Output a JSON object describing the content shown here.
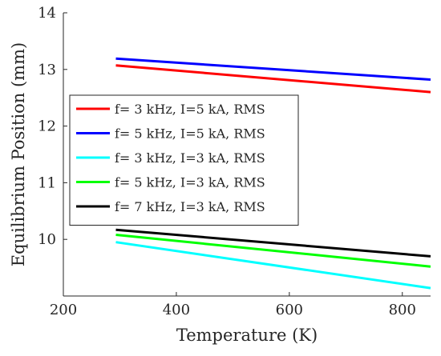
{
  "chart_data": {
    "type": "line",
    "title": "",
    "xlabel": "Temperature (K)",
    "ylabel": "Equilibrium Position (mm)",
    "xlim": [
      200,
      850
    ],
    "ylim": [
      9,
      14
    ],
    "xticks": [
      200,
      400,
      600,
      800
    ],
    "yticks": [
      10,
      11,
      12,
      13,
      14
    ],
    "grid": false,
    "legend_position": "center-left",
    "series": [
      {
        "name": "f= 3 kHz, I=5 kA, RMS",
        "color": "#ff0000",
        "x": [
          293,
          850
        ],
        "y": [
          13.07,
          12.6
        ]
      },
      {
        "name": "f= 5 kHz, I=5 kA, RMS",
        "color": "#0000ff",
        "x": [
          293,
          850
        ],
        "y": [
          13.19,
          12.82
        ]
      },
      {
        "name": "f= 3 kHz, I=3 kA, RMS",
        "color": "#00ffff",
        "x": [
          293,
          850
        ],
        "y": [
          9.95,
          9.14
        ]
      },
      {
        "name": "f= 5 kHz, I=3 kA, RMS",
        "color": "#00ff00",
        "x": [
          293,
          850
        ],
        "y": [
          10.08,
          9.52
        ]
      },
      {
        "name": "f= 7 kHz, I=3 kA, RMS",
        "color": "#000000",
        "x": [
          293,
          850
        ],
        "y": [
          10.17,
          9.7
        ]
      }
    ]
  }
}
